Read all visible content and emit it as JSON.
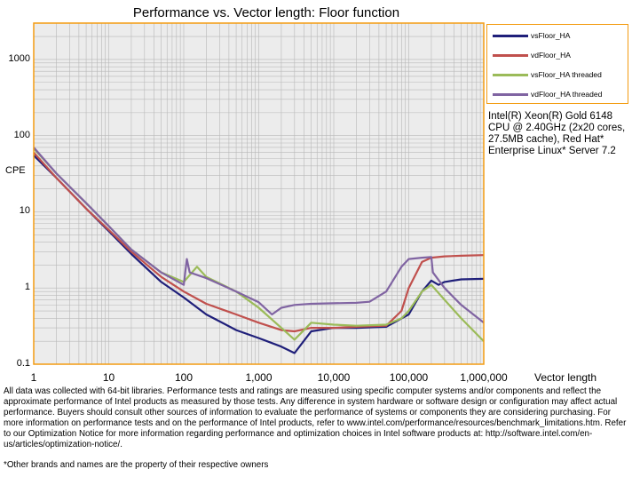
{
  "chart_data": {
    "type": "line",
    "title": "Performance vs. Vector length: Floor function",
    "xlabel": "Vector length",
    "ylabel": "CPE",
    "x_scale": "log",
    "y_scale": "log",
    "xlim": [
      1,
      1000000
    ],
    "ylim": [
      0.1,
      3000
    ],
    "grid": true,
    "legend_position": "right",
    "x_tick_labels": [
      "1",
      "10",
      "100",
      "1,000",
      "10,000",
      "100,000",
      "1,000,000"
    ],
    "y_tick_labels": [
      "0.1",
      "1",
      "10",
      "100",
      "1000"
    ],
    "series": [
      {
        "name": "vsFloor_HA",
        "color": "#1f1f7a",
        "x": [
          1,
          2,
          5,
          10,
          20,
          50,
          100,
          200,
          500,
          1000,
          2000,
          3000,
          5000,
          10000,
          20000,
          50000,
          100000,
          150000,
          200000,
          250000,
          300000,
          500000,
          1000000
        ],
        "y": [
          55,
          28,
          11,
          5.6,
          2.8,
          1.2,
          0.75,
          0.45,
          0.28,
          0.22,
          0.17,
          0.14,
          0.27,
          0.3,
          0.3,
          0.31,
          0.45,
          0.9,
          1.25,
          1.1,
          1.2,
          1.3,
          1.32
        ]
      },
      {
        "name": "vdFloor_HA",
        "color": "#c0504d",
        "x": [
          1,
          2,
          5,
          10,
          20,
          50,
          100,
          200,
          500,
          1000,
          2000,
          3000,
          5000,
          10000,
          20000,
          50000,
          80000,
          100000,
          150000,
          200000,
          300000,
          500000,
          1000000
        ],
        "y": [
          60,
          28,
          11,
          5.8,
          3,
          1.4,
          0.9,
          0.62,
          0.45,
          0.35,
          0.28,
          0.27,
          0.3,
          0.3,
          0.31,
          0.32,
          0.5,
          1,
          2.2,
          2.5,
          2.6,
          2.65,
          2.7
        ]
      },
      {
        "name": "vsFloor_HA threaded",
        "color": "#9bbb59",
        "x": [
          1,
          2,
          5,
          10,
          20,
          50,
          100,
          150,
          200,
          500,
          1000,
          2000,
          3000,
          5000,
          10000,
          20000,
          50000,
          80000,
          100000,
          150000,
          200000,
          300000,
          500000,
          1000000
        ],
        "y": [
          68,
          32,
          13,
          6.5,
          3.2,
          1.6,
          1.2,
          1.9,
          1.4,
          0.9,
          0.55,
          0.3,
          0.21,
          0.35,
          0.33,
          0.32,
          0.33,
          0.4,
          0.5,
          0.9,
          1.1,
          0.7,
          0.4,
          0.2
        ]
      },
      {
        "name": "vdFloor_HA threaded",
        "color": "#8064a2",
        "x": [
          1,
          2,
          5,
          10,
          20,
          50,
          100,
          110,
          120,
          200,
          500,
          1000,
          1500,
          2000,
          3000,
          5000,
          10000,
          20000,
          30000,
          50000,
          80000,
          100000,
          150000,
          200000,
          210000,
          300000,
          500000,
          1000000
        ],
        "y": [
          70,
          32,
          13,
          6.5,
          3.2,
          1.6,
          1.1,
          2.4,
          1.6,
          1.35,
          0.9,
          0.65,
          0.45,
          0.55,
          0.6,
          0.62,
          0.63,
          0.64,
          0.66,
          0.9,
          1.9,
          2.4,
          2.5,
          2.55,
          1.6,
          1.0,
          0.6,
          0.35
        ]
      }
    ]
  },
  "cpu_note": "Intel(R) Xeon(R) Gold 6148 CPU @ 2.40GHz (2x20 cores, 27.5MB cache), Red Hat* Enterprise Linux* Server 7.2",
  "footer": "All data was collected with 64-bit libraries. Performance tests and ratings are measured using specific computer systems and/or components and reflect the approximate performance of Intel products as measured by those tests. Any difference in system hardware or software design or configuration may affect actual performance. Buyers should consult other sources of information to evaluate the performance of systems or components they are considering purchasing. For more information on performance tests and on the performance of Intel products, refer to www.intel.com/performance/resources/benchmark_limitations.htm. Refer to our Optimization Notice for more information regarding performance and optimization choices in Intel software products at: http://software.intel.com/en-us/articles/optimization-notice/.",
  "footnote": "*Other brands and names are the property of their respective owners",
  "colors": {
    "plot_border": "#f39c12",
    "plot_bg": "#ececec",
    "grid": "#b8b8b8"
  }
}
